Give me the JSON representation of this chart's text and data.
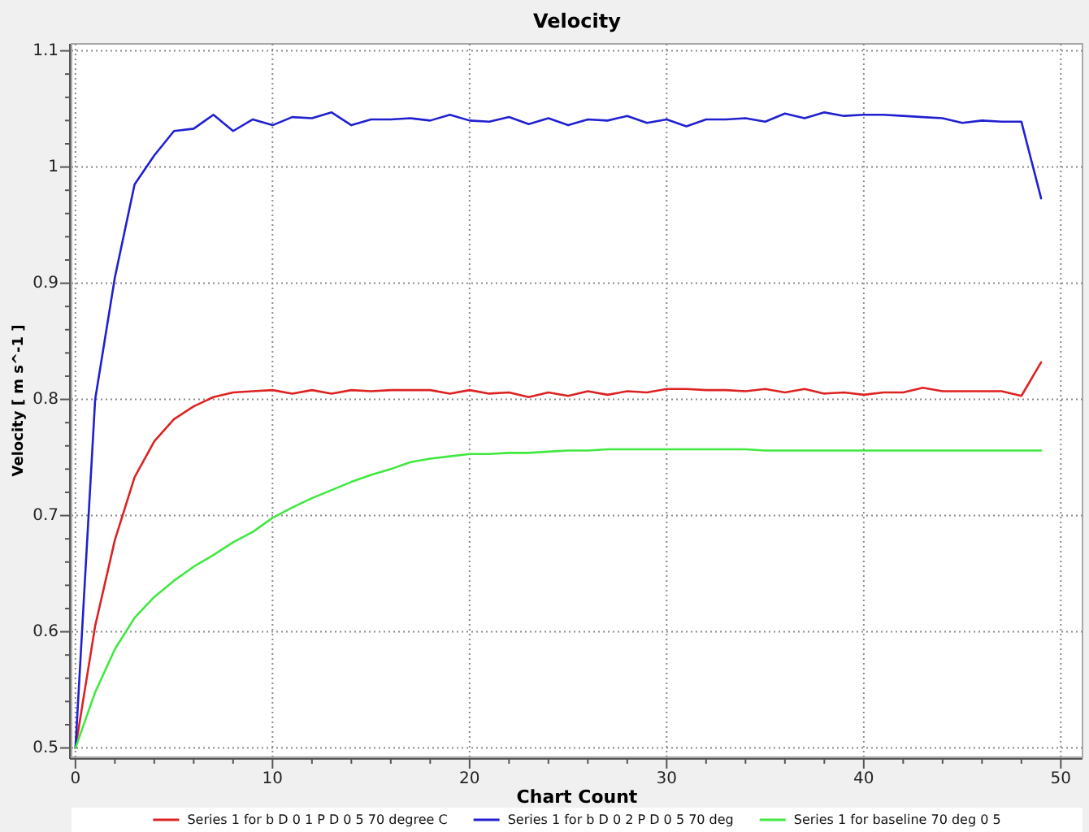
{
  "chart_data": {
    "type": "line",
    "title": "Velocity",
    "xlabel": "Chart Count",
    "ylabel": "Velocity [ m s^-1 ]",
    "x": [
      0,
      1,
      2,
      3,
      4,
      5,
      6,
      7,
      8,
      9,
      10,
      11,
      12,
      13,
      14,
      15,
      16,
      17,
      18,
      19,
      20,
      21,
      22,
      23,
      24,
      25,
      26,
      27,
      28,
      29,
      30,
      31,
      32,
      33,
      34,
      35,
      36,
      37,
      38,
      39,
      40,
      41,
      42,
      43,
      44,
      45,
      46,
      47,
      48,
      49
    ],
    "series": [
      {
        "name": "Series 1 for b D 0 1 P D 0 5 70 degree C",
        "color": "#dd2222",
        "values": [
          0.5,
          0.605,
          0.679,
          0.733,
          0.764,
          0.783,
          0.794,
          0.802,
          0.806,
          0.807,
          0.808,
          0.805,
          0.808,
          0.805,
          0.808,
          0.807,
          0.808,
          0.808,
          0.808,
          0.805,
          0.808,
          0.805,
          0.806,
          0.802,
          0.806,
          0.803,
          0.807,
          0.804,
          0.807,
          0.806,
          0.809,
          0.809,
          0.808,
          0.808,
          0.807,
          0.809,
          0.806,
          0.809,
          0.805,
          0.806,
          0.804,
          0.806,
          0.806,
          0.81,
          0.807,
          0.807,
          0.807,
          0.807,
          0.803,
          0.832
        ]
      },
      {
        "name": "Series 1 for b D 0 2 P D 0 5 70 deg",
        "color": "#2020d0",
        "values": [
          0.5,
          0.8,
          0.905,
          0.985,
          1.01,
          1.031,
          1.033,
          1.045,
          1.031,
          1.041,
          1.036,
          1.043,
          1.042,
          1.047,
          1.036,
          1.041,
          1.041,
          1.042,
          1.04,
          1.045,
          1.04,
          1.039,
          1.043,
          1.037,
          1.042,
          1.036,
          1.041,
          1.04,
          1.044,
          1.038,
          1.041,
          1.035,
          1.041,
          1.041,
          1.042,
          1.039,
          1.046,
          1.042,
          1.047,
          1.044,
          1.045,
          1.045,
          1.044,
          1.043,
          1.042,
          1.038,
          1.04,
          1.039,
          1.039,
          0.973
        ]
      },
      {
        "name": "Series 1 for baseline 70 deg 0 5",
        "color": "#40e840",
        "values": [
          0.5,
          0.548,
          0.585,
          0.612,
          0.63,
          0.644,
          0.656,
          0.666,
          0.677,
          0.686,
          0.698,
          0.707,
          0.715,
          0.722,
          0.729,
          0.735,
          0.74,
          0.746,
          0.749,
          0.751,
          0.753,
          0.753,
          0.754,
          0.754,
          0.755,
          0.756,
          0.756,
          0.757,
          0.757,
          0.757,
          0.757,
          0.757,
          0.757,
          0.757,
          0.757,
          0.756,
          0.756,
          0.756,
          0.756,
          0.756,
          0.756,
          0.756,
          0.756,
          0.756,
          0.756,
          0.756,
          0.756,
          0.756,
          0.756,
          0.756
        ]
      }
    ],
    "xlim": [
      -0.2,
      51.1
    ],
    "ylim": [
      0.492,
      1.106
    ],
    "xticks": [
      0,
      {
        "value": 2,
        "label": null
      },
      {
        "value": 4,
        "label": null
      },
      {
        "value": 6,
        "label": null
      },
      {
        "value": 8,
        "label": null
      },
      10,
      {
        "value": 12,
        "label": null
      },
      {
        "value": 14,
        "label": null
      },
      {
        "value": 16,
        "label": null
      },
      {
        "value": 18,
        "label": null
      },
      20,
      {
        "value": 22,
        "label": null
      },
      {
        "value": 24,
        "label": null
      },
      {
        "value": 26,
        "label": null
      },
      {
        "value": 28,
        "label": null
      },
      30,
      {
        "value": 32,
        "label": null
      },
      {
        "value": 34,
        "label": null
      },
      {
        "value": 36,
        "label": null
      },
      {
        "value": 38,
        "label": null
      },
      40,
      {
        "value": 42,
        "label": null
      },
      {
        "value": 44,
        "label": null
      },
      {
        "value": 46,
        "label": null
      },
      {
        "value": 48,
        "label": null
      },
      50
    ],
    "yticks": [
      0.5,
      {
        "value": 0.52,
        "label": null
      },
      {
        "value": 0.54,
        "label": null
      },
      {
        "value": 0.56,
        "label": null
      },
      {
        "value": 0.58,
        "label": null
      },
      0.6,
      {
        "value": 0.62,
        "label": null
      },
      {
        "value": 0.64,
        "label": null
      },
      {
        "value": 0.66,
        "label": null
      },
      {
        "value": 0.68,
        "label": null
      },
      0.7,
      {
        "value": 0.72,
        "label": null
      },
      {
        "value": 0.74,
        "label": null
      },
      {
        "value": 0.76,
        "label": null
      },
      {
        "value": 0.78,
        "label": null
      },
      0.8,
      {
        "value": 0.82,
        "label": null
      },
      {
        "value": 0.84,
        "label": null
      },
      {
        "value": 0.86,
        "label": null
      },
      {
        "value": 0.88,
        "label": null
      },
      0.9,
      {
        "value": 0.92,
        "label": null
      },
      {
        "value": 0.94,
        "label": null
      },
      {
        "value": 0.96,
        "label": null
      },
      {
        "value": 0.98,
        "label": null
      },
      1,
      {
        "value": 1.02,
        "label": null
      },
      {
        "value": 1.04,
        "label": null
      },
      {
        "value": 1.06,
        "label": null
      },
      {
        "value": 1.08,
        "label": null
      },
      1.1
    ],
    "grid": true,
    "legend": "bottom"
  }
}
